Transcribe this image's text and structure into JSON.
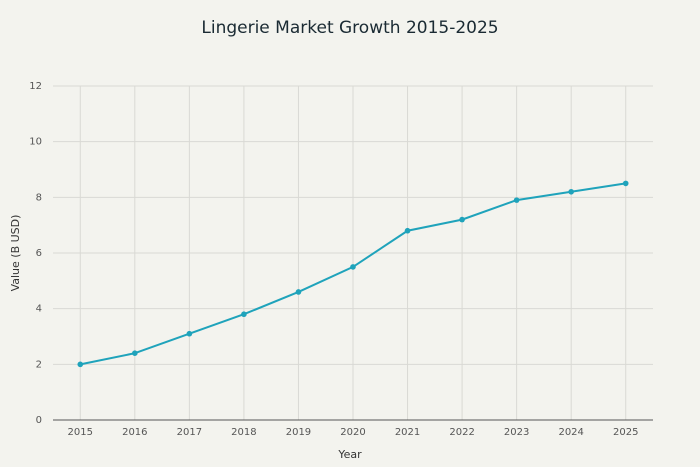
{
  "chart_data": {
    "type": "line",
    "title": "Lingerie Market Growth 2015-2025",
    "x_label": "Year",
    "y_label": "Value (B USD)",
    "x": [
      2015,
      2016,
      2017,
      2018,
      2019,
      2020,
      2021,
      2022,
      2023,
      2024,
      2025
    ],
    "series": [
      {
        "name": "Value",
        "color": "#1fa3bb",
        "values": [
          2.0,
          2.4,
          3.1,
          3.8,
          4.6,
          5.5,
          6.8,
          7.2,
          7.9,
          8.2,
          8.5
        ]
      }
    ],
    "xlim": [
      2014.5,
      2025.5
    ],
    "xticks": [
      2015,
      2016,
      2017,
      2018,
      2019,
      2020,
      2021,
      2022,
      2023,
      2024,
      2025
    ],
    "ylim": [
      0,
      12
    ],
    "yticks": [
      0,
      2,
      4,
      6,
      8,
      10,
      12
    ],
    "grid": true
  }
}
